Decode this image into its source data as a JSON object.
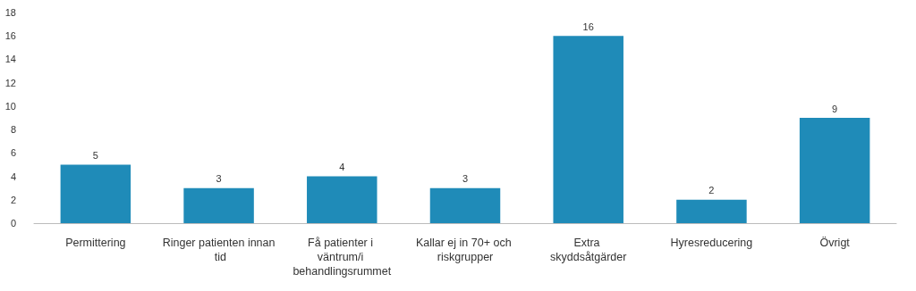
{
  "chart_data": {
    "type": "bar",
    "categories": [
      "Permittering",
      "Ringer patienten innan tid",
      "Få patienter i väntrum/i behandlingsrummet",
      "Kallar ej in 70+ och riskgrupper",
      "Extra skyddsåtgärder",
      "Hyresreducering",
      "Övrigt"
    ],
    "values": [
      5,
      3,
      4,
      3,
      16,
      2,
      9
    ],
    "color": "#1f8bb8",
    "ylim": [
      0,
      18
    ],
    "yticks": [
      0,
      2,
      4,
      6,
      8,
      10,
      12,
      14,
      16,
      18
    ],
    "grid": false,
    "data_labels": true
  }
}
